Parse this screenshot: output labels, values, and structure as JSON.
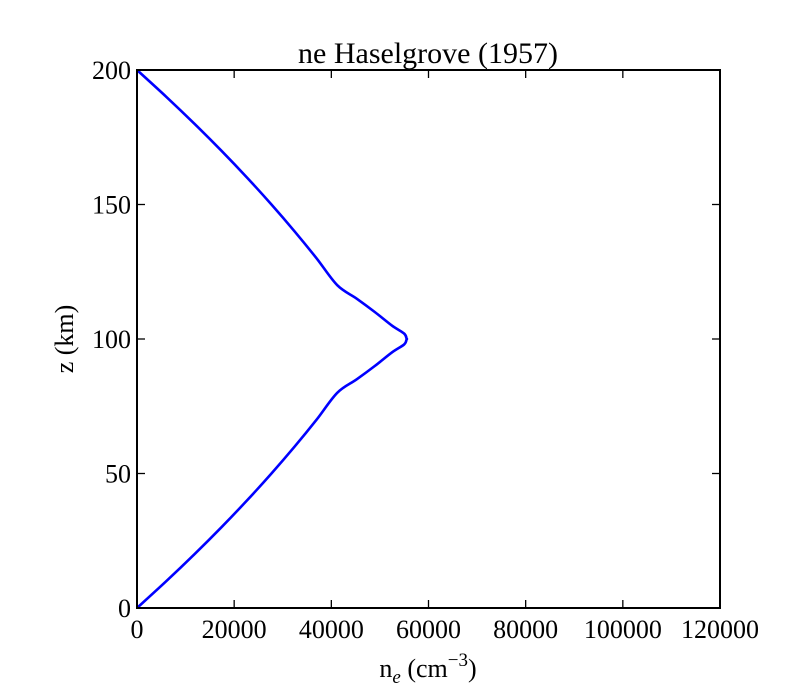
{
  "chart_data": {
    "type": "line",
    "title": "ne Haselgrove (1957)",
    "xlabel": {
      "base": "n",
      "subscript": "e",
      "unit_open": " (cm",
      "superscript": "−3",
      "unit_close": ")"
    },
    "ylabel": "z (km)",
    "xlim": [
      0,
      120000
    ],
    "ylim": [
      0,
      200
    ],
    "x_ticks": [
      "0",
      "20000",
      "40000",
      "60000",
      "80000",
      "100000",
      "120000"
    ],
    "y_ticks": [
      "0",
      "50",
      "100",
      "150",
      "200"
    ],
    "grid": false,
    "legend": "none",
    "line_color": "#0000ff",
    "series": [
      {
        "x": [
          0,
          6045,
          11835,
          17370,
          22650,
          27675,
          32445,
          36960,
          41220,
          45225,
          48975,
          52470,
          55000,
          55500,
          55500,
          55000,
          52470,
          48975,
          45225,
          41220,
          36960,
          32445,
          27675,
          22650,
          17370,
          11835,
          6045,
          0
        ],
        "y": [
          0,
          10,
          20,
          30,
          40,
          50,
          60,
          70,
          80,
          85,
          90,
          95,
          98,
          100,
          100,
          102,
          105,
          110,
          115,
          120,
          130,
          140,
          150,
          160,
          170,
          180,
          190,
          200
        ]
      }
    ]
  }
}
